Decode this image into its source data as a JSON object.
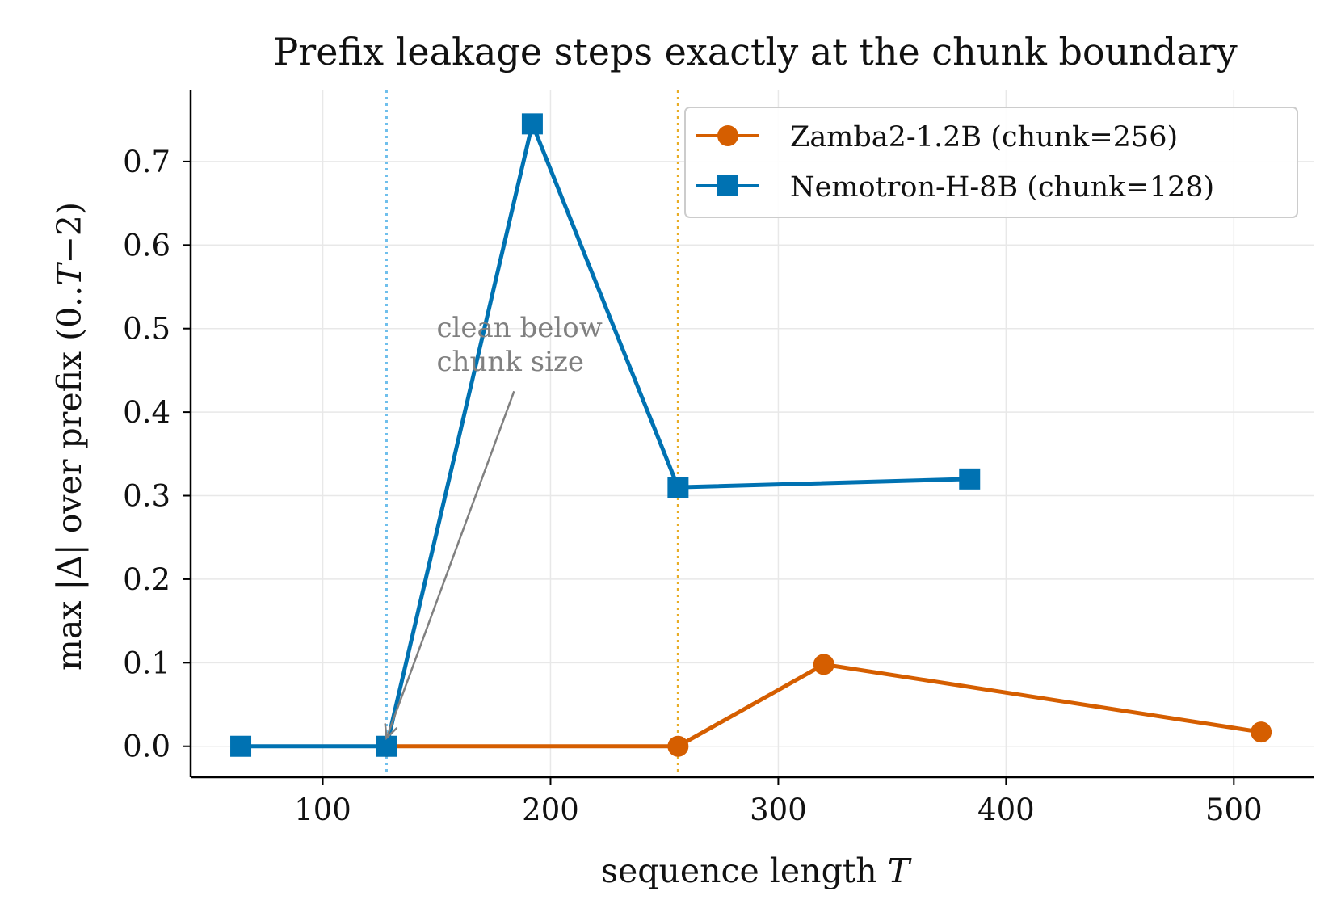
{
  "chart_data": {
    "type": "line",
    "title": "Prefix leakage steps exactly at the chunk boundary",
    "xlabel_prefix": "sequence length ",
    "xlabel_var": "T",
    "ylabel_prefix": "max |Δ| over prefix (0..",
    "ylabel_var": "T",
    "ylabel_suffix": "−2)",
    "xlim": [
      42,
      535
    ],
    "ylim": [
      -0.037,
      0.785
    ],
    "xticks": [
      100,
      200,
      300,
      400,
      500
    ],
    "yticks": [
      0.0,
      0.1,
      0.2,
      0.3,
      0.4,
      0.5,
      0.6,
      0.7
    ],
    "ytick_labels": [
      "0.0",
      "0.1",
      "0.2",
      "0.3",
      "0.4",
      "0.5",
      "0.6",
      "0.7"
    ],
    "grid": true,
    "legend_position": "upper-right",
    "series": [
      {
        "name": "Zamba2-1.2B (chunk=256)",
        "color": "#D55E00",
        "marker": "circle",
        "x": [
          128,
          256,
          320,
          512
        ],
        "y": [
          0.0,
          0.0,
          0.098,
          0.017
        ]
      },
      {
        "name": "Nemotron-H-8B (chunk=128)",
        "color": "#0072B2",
        "marker": "square",
        "x": [
          64,
          128,
          192,
          256,
          384
        ],
        "y": [
          0.0,
          0.0,
          0.745,
          0.31,
          0.32
        ]
      }
    ],
    "vlines": [
      {
        "x": 128,
        "color": "#56B4E9",
        "style": "dotted"
      },
      {
        "x": 256,
        "color": "#E69F00",
        "style": "dotted"
      }
    ],
    "annotation": {
      "lines": [
        "clean below",
        "chunk size"
      ],
      "text_x": 150,
      "text_y": 0.49,
      "arrow_from_x": 184,
      "arrow_from_y": 0.425,
      "arrow_to_x": 128,
      "arrow_to_y": 0.01,
      "color": "#808080"
    }
  }
}
